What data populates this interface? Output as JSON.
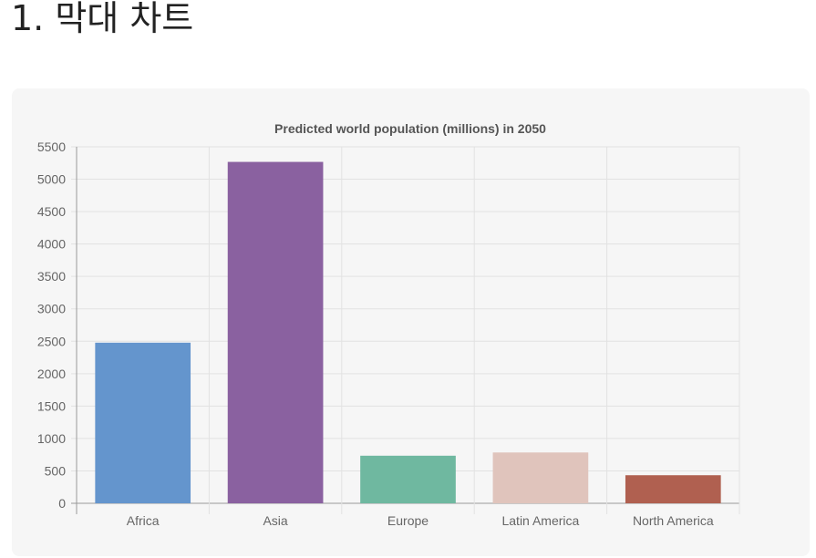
{
  "page": {
    "heading": "1. 막대 차트"
  },
  "chart_data": {
    "type": "bar",
    "title": "Predicted world population (millions) in 2050",
    "categories": [
      "Africa",
      "Asia",
      "Europe",
      "Latin America",
      "North America"
    ],
    "values": [
      2478,
      5267,
      734,
      784,
      433
    ],
    "colors": [
      "#6495cd",
      "#8a61a0",
      "#6fb8a0",
      "#e0c4bc",
      "#b06050"
    ],
    "ylim": [
      0,
      5500
    ],
    "yticks": [
      "0",
      "500",
      "1000",
      "1500",
      "2000",
      "2500",
      "3000",
      "3500",
      "4000",
      "4500",
      "5000",
      "5500"
    ],
    "grid": true,
    "legend": "none"
  }
}
